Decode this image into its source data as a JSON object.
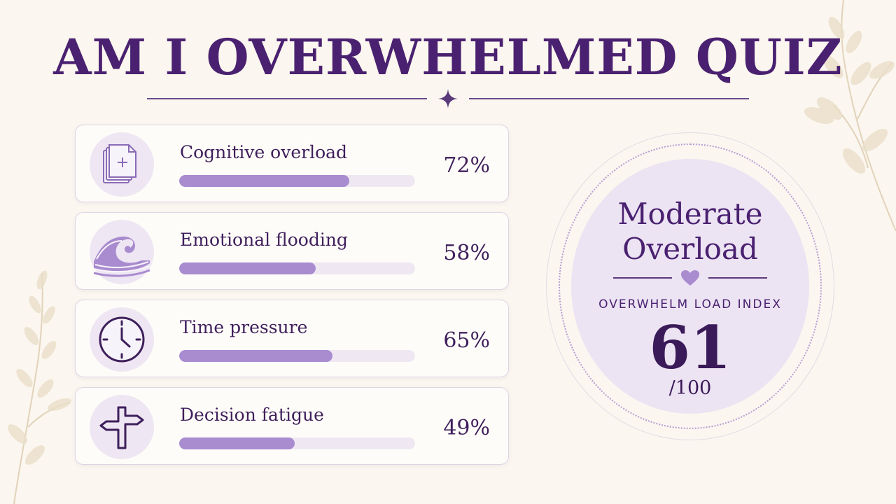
{
  "title": "AM I OVERWHELMED QUIZ",
  "colors": {
    "background": "#fbf6ef",
    "accent": "#4a2170",
    "bar_fill": "#a98bcf",
    "bar_track": "#efe8f3",
    "icon_bg": "#eee7f3"
  },
  "categories": [
    {
      "label": "Cognitive overload",
      "percent_text": "72%",
      "value": 72,
      "icon": "documents-icon"
    },
    {
      "label": "Emotional flooding",
      "percent_text": "58%",
      "value": 58,
      "icon": "wave-icon"
    },
    {
      "label": "Time pressure",
      "percent_text": "65%",
      "value": 65,
      "icon": "clock-icon"
    },
    {
      "label": "Decision fatigue",
      "percent_text": "49%",
      "value": 49,
      "icon": "signpost-icon"
    }
  ],
  "result": {
    "heading": "Moderate Overload",
    "caption": "OVERWHELM LOAD INDEX",
    "score": "61",
    "max": "/100"
  }
}
